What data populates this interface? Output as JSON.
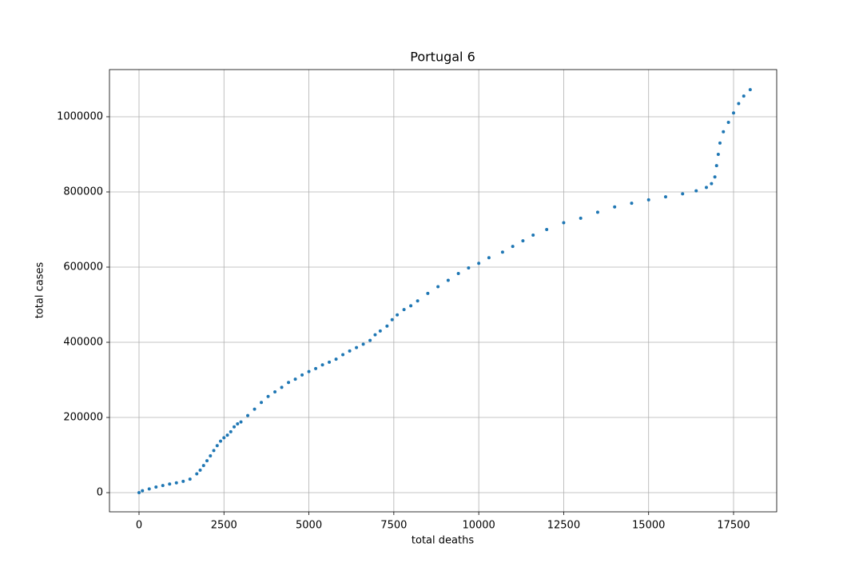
{
  "chart_data": {
    "type": "scatter",
    "title": "Portugal 6",
    "x_label": "total deaths",
    "y_label": "total cases",
    "x": [
      0,
      100,
      300,
      500,
      700,
      900,
      1100,
      1300,
      1500,
      1700,
      1800,
      1900,
      2000,
      2100,
      2200,
      2300,
      2400,
      2500,
      2600,
      2700,
      2800,
      2900,
      3000,
      3200,
      3400,
      3600,
      3800,
      4000,
      4200,
      4400,
      4600,
      4800,
      5000,
      5200,
      5400,
      5600,
      5800,
      6000,
      6200,
      6400,
      6600,
      6800,
      6950,
      7100,
      7300,
      7450,
      7600,
      7800,
      8000,
      8200,
      8500,
      8800,
      9100,
      9400,
      9700,
      10000,
      10300,
      10700,
      11000,
      11300,
      11600,
      12000,
      12500,
      13000,
      13500,
      14000,
      14500,
      15000,
      15500,
      16000,
      16400,
      16700,
      16850,
      16950,
      17000,
      17050,
      17100,
      17200,
      17350,
      17500,
      17650,
      17800,
      17990
    ],
    "values": [
      0,
      5000,
      10000,
      15000,
      19000,
      23000,
      26000,
      30000,
      36000,
      50000,
      60000,
      72000,
      85000,
      98000,
      112000,
      125000,
      137000,
      146000,
      153000,
      162000,
      175000,
      183000,
      188000,
      205000,
      222000,
      240000,
      256000,
      268000,
      280000,
      293000,
      302000,
      313000,
      322000,
      330000,
      340000,
      347000,
      355000,
      367000,
      377000,
      386000,
      395000,
      405000,
      420000,
      430000,
      443000,
      460000,
      473000,
      487000,
      497000,
      510000,
      530000,
      548000,
      565000,
      583000,
      598000,
      610000,
      625000,
      640000,
      655000,
      670000,
      685000,
      700000,
      718000,
      730000,
      746000,
      760000,
      770000,
      779000,
      787000,
      795000,
      803000,
      812000,
      822000,
      840000,
      870000,
      900000,
      930000,
      960000,
      985000,
      1010000,
      1035000,
      1055000,
      1072000
    ],
    "color": "#1f77b4",
    "xlim": [
      -870,
      18770
    ],
    "ylim": [
      -51000,
      1125500
    ],
    "xticks": [
      0,
      2500,
      5000,
      7500,
      10000,
      12500,
      15000,
      17500
    ],
    "yticks": [
      0,
      200000,
      400000,
      600000,
      800000,
      1000000
    ],
    "grid": true
  }
}
